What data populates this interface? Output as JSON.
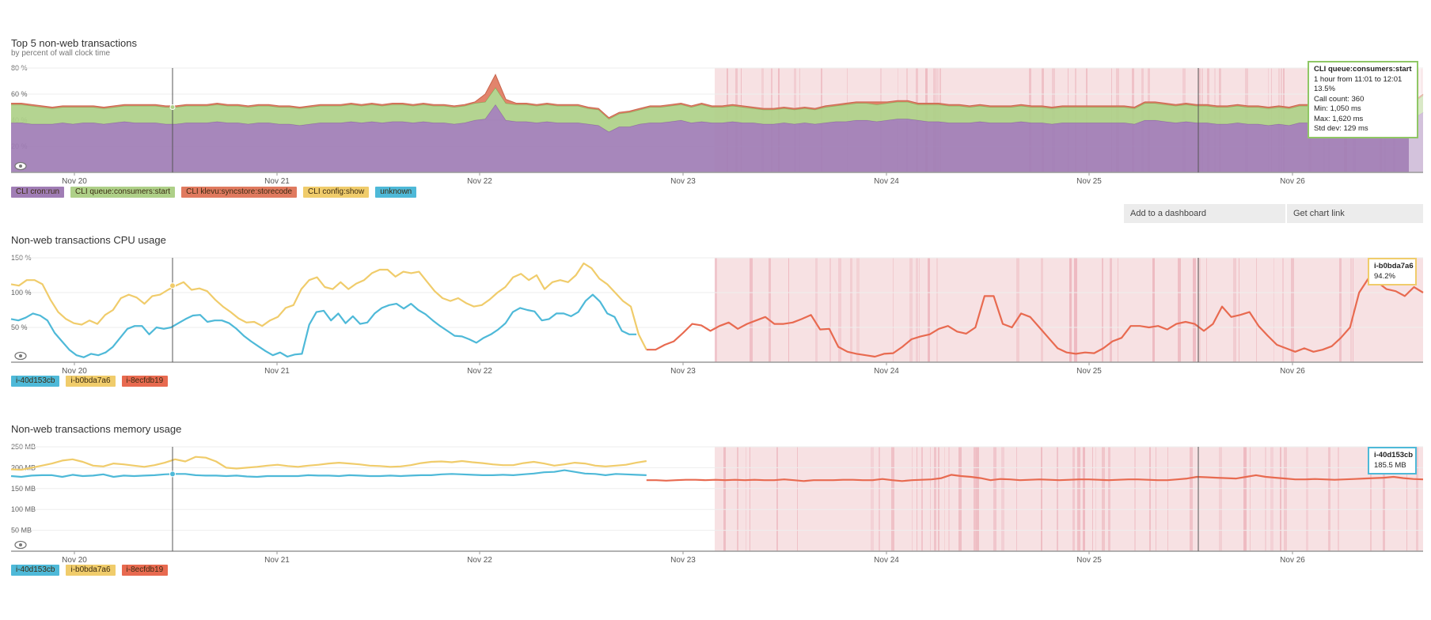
{
  "buttons": {
    "add_dashboard": "Add to a dashboard",
    "get_link": "Get chart link"
  },
  "chart_data": [
    {
      "id": "transactions",
      "type": "area",
      "title": "Top 5 non-web transactions",
      "subtitle": "by percent of wall clock time",
      "x_ticks": [
        "Nov 20",
        "Nov 21",
        "Nov 22",
        "Nov 23",
        "Nov 24",
        "Nov 25",
        "Nov 26"
      ],
      "y_ticks": [
        "20 %",
        "40 %",
        "60 %",
        "80 %"
      ],
      "ylim": [
        0,
        80
      ],
      "x_range": [
        "Nov 19 12:00",
        "Nov 26 18:00"
      ],
      "stacked": true,
      "series": [
        {
          "name": "CLI cron:run",
          "color": "#a07db5",
          "values": [
            38,
            38,
            37,
            37,
            37,
            38,
            37,
            38,
            38,
            37,
            38,
            39,
            38,
            38,
            38,
            37,
            37,
            38,
            38,
            38,
            39,
            38,
            38,
            37,
            38,
            38,
            37,
            37,
            36,
            37,
            38,
            38,
            38,
            39,
            38,
            39,
            38,
            39,
            39,
            38,
            39,
            38,
            38,
            37,
            38,
            40,
            41,
            52,
            40,
            39,
            39,
            38,
            39,
            38,
            38,
            38,
            37,
            36,
            31,
            35,
            35,
            37,
            38,
            38,
            39,
            40,
            38,
            39,
            38,
            38,
            39,
            38,
            38,
            37,
            37,
            38,
            37,
            38,
            37,
            38,
            39,
            39,
            40,
            40,
            39,
            40,
            41,
            41,
            40,
            39,
            39,
            38,
            38,
            38,
            39,
            38,
            38,
            38,
            39,
            38,
            38,
            37,
            38,
            38,
            38,
            38,
            38,
            38,
            38,
            37,
            40,
            40,
            39,
            38,
            39,
            38,
            38,
            37,
            37,
            38,
            37,
            37,
            36,
            37,
            36,
            38,
            38,
            38,
            39,
            40,
            40,
            40,
            40,
            39,
            40,
            39,
            41,
            46
          ]
        },
        {
          "name": "CLI queue:consumers:start",
          "color": "#aed088",
          "values": [
            14,
            14,
            14,
            13,
            12,
            12,
            13,
            12,
            12,
            12,
            12,
            12,
            13,
            13,
            13,
            13,
            13,
            13,
            13,
            13,
            13,
            13,
            13,
            13,
            13,
            13,
            13,
            13,
            13,
            13,
            13,
            13,
            13,
            13,
            13,
            13,
            13,
            13,
            13,
            13,
            13,
            13,
            13,
            13,
            13,
            13,
            13,
            13,
            13,
            13,
            13,
            13,
            13,
            13,
            13,
            13,
            12,
            12,
            10,
            10,
            11,
            11,
            12,
            12,
            12,
            12,
            12,
            13,
            12,
            12,
            12,
            12,
            11,
            11,
            11,
            11,
            11,
            11,
            11,
            12,
            12,
            13,
            13,
            13,
            13,
            13,
            13,
            13,
            12,
            13,
            13,
            13,
            13,
            12,
            12,
            12,
            12,
            12,
            12,
            12,
            12,
            12,
            12,
            12,
            12,
            12,
            12,
            12,
            12,
            12,
            13,
            13,
            13,
            13,
            13,
            13,
            13,
            13,
            13,
            13,
            13,
            13,
            13,
            13,
            13,
            13,
            13,
            13,
            13,
            13,
            13,
            13,
            13,
            13,
            13,
            13,
            12,
            13
          ]
        },
        {
          "name": "CLI klevu:syncstore:storecode",
          "color": "#e07a5f",
          "values": [
            1,
            1,
            1,
            1,
            1,
            1,
            1,
            1,
            1,
            1,
            1,
            1,
            1,
            1,
            1,
            1,
            1,
            1,
            1,
            1,
            1,
            1,
            1,
            1,
            1,
            1,
            1,
            1,
            1,
            1,
            1,
            1,
            1,
            1,
            1,
            1,
            1,
            1,
            1,
            1,
            1,
            1,
            1,
            1,
            1,
            1,
            6,
            10,
            3,
            1,
            1,
            1,
            1,
            1,
            1,
            1,
            1,
            1,
            1,
            1,
            1,
            1,
            1,
            1,
            1,
            1,
            1,
            1,
            1,
            1,
            1,
            1,
            1,
            1,
            1,
            1,
            1,
            1,
            1,
            1,
            1,
            1,
            1,
            1,
            2,
            1,
            1,
            1,
            1,
            1,
            1,
            1,
            1,
            1,
            1,
            1,
            1,
            1,
            1,
            1,
            1,
            1,
            1,
            1,
            1,
            1,
            1,
            1,
            1,
            1,
            1,
            1,
            1,
            1,
            1,
            1,
            1,
            1,
            1,
            1,
            1,
            1,
            1,
            1,
            1,
            1,
            1,
            1,
            1,
            1,
            1,
            1,
            1,
            1,
            1,
            1,
            1,
            1
          ]
        },
        {
          "name": "CLI config:show",
          "color": "#f0cc6b",
          "values": []
        },
        {
          "name": "unknown",
          "color": "#4eb9d8",
          "values": []
        }
      ],
      "tooltip": {
        "title": "CLI queue:consumers:start",
        "lines": [
          "1 hour from 11:01 to 12:01",
          "13.5%",
          "Call count: 360",
          "Min: 1,050 ms",
          "Max: 1,620 ms",
          "Std dev: 129 ms"
        ],
        "border": "#8fc765"
      }
    },
    {
      "id": "cpu",
      "type": "line",
      "title": "Non-web transactions CPU usage",
      "x_ticks": [
        "Nov 20",
        "Nov 21",
        "Nov 22",
        "Nov 23",
        "Nov 24",
        "Nov 25",
        "Nov 26"
      ],
      "y_ticks": [
        "50 %",
        "100 %",
        "150 %"
      ],
      "ylim": [
        0,
        150
      ],
      "series": [
        {
          "name": "i-40d153cb",
          "color": "#4eb9d8",
          "range": [
            0,
            62
          ],
          "values": [
            62,
            60,
            64,
            70,
            67,
            60,
            42,
            30,
            18,
            10,
            7,
            12,
            10,
            14,
            22,
            35,
            48,
            52,
            52,
            40,
            50,
            48,
            50,
            56,
            62,
            67,
            68,
            58,
            60,
            60,
            56,
            48,
            38,
            30,
            23,
            16,
            10,
            14,
            8,
            11,
            12,
            54,
            72,
            74,
            60,
            70,
            56,
            66,
            55,
            57,
            70,
            78,
            82,
            84,
            77,
            84,
            75,
            69,
            60,
            52,
            45,
            38,
            37,
            33,
            28,
            35,
            40,
            47,
            56,
            72,
            78,
            75,
            73,
            60,
            62,
            70,
            70,
            66,
            72,
            88,
            97,
            87,
            70,
            65,
            45,
            40,
            40
          ]
        },
        {
          "name": "i-b0bda7a6",
          "color": "#f0cc6b",
          "range": [
            0,
            63
          ],
          "values": [
            112,
            110,
            118,
            118,
            112,
            90,
            72,
            62,
            56,
            54,
            60,
            55,
            68,
            75,
            92,
            97,
            93,
            84,
            95,
            97,
            104,
            110,
            115,
            104,
            106,
            102,
            90,
            80,
            72,
            63,
            57,
            58,
            52,
            60,
            65,
            78,
            82,
            105,
            118,
            122,
            108,
            105,
            115,
            105,
            113,
            118,
            128,
            133,
            133,
            123,
            130,
            128,
            130,
            116,
            102,
            92,
            88,
            92,
            85,
            80,
            82,
            90,
            100,
            108,
            122,
            127,
            118,
            125,
            105,
            115,
            118,
            115,
            125,
            142,
            135,
            120,
            112,
            100,
            88,
            80,
            40,
            18
          ]
        },
        {
          "name": "i-8ecfdb19",
          "color": "#e86a50",
          "range": [
            63,
            140
          ],
          "values": [
            18,
            18,
            25,
            30,
            42,
            55,
            53,
            45,
            52,
            57,
            48,
            55,
            60,
            65,
            55,
            55,
            57,
            62,
            68,
            47,
            48,
            22,
            15,
            12,
            10,
            8,
            12,
            13,
            22,
            33,
            37,
            40,
            48,
            52,
            44,
            41,
            50,
            95,
            95,
            55,
            50,
            70,
            65,
            50,
            35,
            20,
            14,
            12,
            14,
            13,
            20,
            30,
            35,
            52,
            52,
            50,
            52,
            47,
            55,
            58,
            55,
            45,
            55,
            80,
            65,
            68,
            72,
            52,
            38,
            25,
            20,
            15,
            20,
            15,
            18,
            23,
            35,
            50,
            100,
            120,
            115,
            105,
            102,
            95,
            108,
            100
          ]
        }
      ],
      "tooltip": {
        "title": "i-b0bda7a6",
        "lines": [
          "94.2%"
        ],
        "border": "#f0cc6b"
      }
    },
    {
      "id": "memory",
      "type": "line",
      "title": "Non-web transactions memory usage",
      "x_ticks": [
        "Nov 20",
        "Nov 21",
        "Nov 22",
        "Nov 23",
        "Nov 24",
        "Nov 25",
        "Nov 26"
      ],
      "y_ticks": [
        "50 MB",
        "100 MB",
        "150 MB",
        "200 MB",
        "250 MB"
      ],
      "ylim": [
        0,
        250
      ],
      "series": [
        {
          "name": "i-40d153cb",
          "color": "#4eb9d8",
          "range": [
            0,
            63
          ],
          "values": [
            180,
            178,
            181,
            182,
            182,
            178,
            183,
            180,
            181,
            184,
            178,
            181,
            180,
            181,
            182,
            184,
            185,
            185,
            182,
            181,
            181,
            180,
            181,
            179,
            178,
            180,
            180,
            180,
            180,
            182,
            181,
            181,
            180,
            182,
            181,
            180,
            180,
            181,
            180,
            181,
            182,
            182,
            184,
            185,
            184,
            183,
            182,
            182,
            183,
            182,
            184,
            186,
            189,
            190,
            194,
            190,
            186,
            185,
            182,
            185,
            184,
            183,
            182
          ]
        },
        {
          "name": "i-b0bda7a6",
          "color": "#f0cc6b",
          "range": [
            0,
            63
          ],
          "values": [
            196,
            195,
            200,
            205,
            210,
            217,
            220,
            214,
            205,
            203,
            210,
            208,
            205,
            202,
            206,
            212,
            220,
            215,
            226,
            224,
            215,
            200,
            198,
            200,
            202,
            205,
            207,
            204,
            202,
            205,
            207,
            210,
            212,
            210,
            208,
            205,
            204,
            202,
            203,
            206,
            211,
            214,
            215,
            213,
            216,
            213,
            211,
            208,
            206,
            206,
            211,
            214,
            210,
            205,
            208,
            212,
            210,
            205,
            203,
            205,
            207,
            212,
            216
          ]
        },
        {
          "name": "i-8ecfdb19",
          "color": "#e86a50",
          "range": [
            63,
            140
          ],
          "values": [
            170,
            170,
            169,
            170,
            171,
            171,
            170,
            171,
            170,
            171,
            170,
            171,
            170,
            170,
            172,
            170,
            168,
            170,
            170,
            170,
            171,
            171,
            170,
            170,
            173,
            170,
            168,
            170,
            171,
            172,
            175,
            183,
            180,
            178,
            175,
            170,
            173,
            172,
            170,
            171,
            172,
            171,
            170,
            171,
            172,
            172,
            171,
            170,
            171,
            172,
            172,
            171,
            170,
            170,
            172,
            174,
            178,
            177,
            176,
            175,
            174,
            178,
            182,
            178,
            176,
            174,
            172,
            172,
            173,
            172,
            171,
            172,
            173,
            174,
            175,
            176,
            178,
            175,
            173,
            172
          ]
        }
      ],
      "tooltip": {
        "title": "i-40d153cb",
        "lines": [
          "185.5 MB"
        ],
        "border": "#4eb9d8"
      }
    }
  ]
}
